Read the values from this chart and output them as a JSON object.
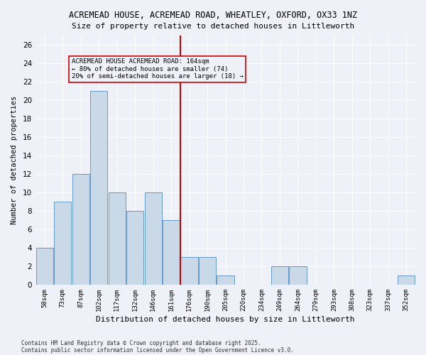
{
  "title_line1": "ACREMEAD HOUSE, ACREMEAD ROAD, WHEATLEY, OXFORD, OX33 1NZ",
  "title_line2": "Size of property relative to detached houses in Littleworth",
  "xlabel": "Distribution of detached houses by size in Littleworth",
  "ylabel": "Number of detached properties",
  "categories": [
    "58sqm",
    "73sqm",
    "87sqm",
    "102sqm",
    "117sqm",
    "132sqm",
    "146sqm",
    "161sqm",
    "176sqm",
    "190sqm",
    "205sqm",
    "220sqm",
    "234sqm",
    "249sqm",
    "264sqm",
    "279sqm",
    "293sqm",
    "308sqm",
    "323sqm",
    "337sqm",
    "352sqm"
  ],
  "values": [
    4,
    9,
    12,
    21,
    10,
    8,
    10,
    7,
    3,
    3,
    1,
    0,
    0,
    2,
    2,
    0,
    0,
    0,
    0,
    0,
    1
  ],
  "bar_color": "#c9d9e8",
  "bar_edge_color": "#6699cc",
  "marker_index": 7,
  "marker_label": "ACREMEAD HOUSE ACREMEAD ROAD: 164sqm",
  "marker_sublabel1": "← 80% of detached houses are smaller (74)",
  "marker_sublabel2": "20% of semi-detached houses are larger (18) →",
  "vline_color": "#cc0000",
  "annotation_box_color": "#cc0000",
  "ylim": [
    0,
    27
  ],
  "yticks": [
    0,
    2,
    4,
    6,
    8,
    10,
    12,
    14,
    16,
    18,
    20,
    22,
    24,
    26
  ],
  "bg_color": "#eef2f8",
  "grid_color": "#ffffff",
  "footer1": "Contains HM Land Registry data © Crown copyright and database right 2025.",
  "footer2": "Contains public sector information licensed under the Open Government Licence v3.0."
}
